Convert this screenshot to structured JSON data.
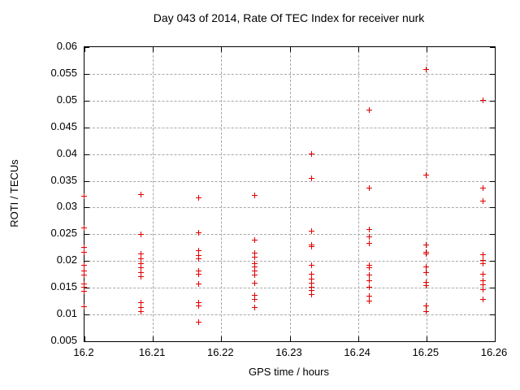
{
  "chart_data": {
    "type": "scatter",
    "title": "Day 043 of 2014, Rate Of TEC Index for receiver nurk",
    "xlabel": "GPS time / hours",
    "ylabel": "ROTI / TECUs",
    "xlim": [
      16.2,
      16.26
    ],
    "ylim": [
      0.005,
      0.06
    ],
    "grid": true,
    "legend": "none",
    "marker": "plus",
    "colors": {
      "marker": "#e00000",
      "grid": "#a8a8a8",
      "axis": "#000000",
      "background": "#ffffff"
    },
    "x_ticks": [
      {
        "value": 16.2,
        "label": "16.2"
      },
      {
        "value": 16.21,
        "label": "16.21"
      },
      {
        "value": 16.22,
        "label": "16.22"
      },
      {
        "value": 16.23,
        "label": "16.23"
      },
      {
        "value": 16.24,
        "label": "16.24"
      },
      {
        "value": 16.25,
        "label": "16.25"
      },
      {
        "value": 16.26,
        "label": "16.26"
      }
    ],
    "y_ticks": [
      {
        "value": 0.005,
        "label": "0.005"
      },
      {
        "value": 0.01,
        "label": "0.01"
      },
      {
        "value": 0.015,
        "label": "0.015"
      },
      {
        "value": 0.02,
        "label": "0.02"
      },
      {
        "value": 0.025,
        "label": "0.025"
      },
      {
        "value": 0.03,
        "label": "0.03"
      },
      {
        "value": 0.035,
        "label": "0.035"
      },
      {
        "value": 0.04,
        "label": "0.04"
      },
      {
        "value": 0.045,
        "label": "0.045"
      },
      {
        "value": 0.05,
        "label": "0.05"
      },
      {
        "value": 0.055,
        "label": "0.055"
      },
      {
        "value": 0.06,
        "label": "0.06"
      }
    ],
    "series": [
      {
        "name": "ROTI",
        "points": [
          [
            16.2,
            0.032
          ],
          [
            16.2,
            0.0261
          ],
          [
            16.2,
            0.0224
          ],
          [
            16.2,
            0.0215
          ],
          [
            16.2,
            0.0191
          ],
          [
            16.2,
            0.0181
          ],
          [
            16.2,
            0.0173
          ],
          [
            16.2,
            0.0156
          ],
          [
            16.2,
            0.015
          ],
          [
            16.2,
            0.0142
          ],
          [
            16.2,
            0.0114
          ],
          [
            16.2083,
            0.0323
          ],
          [
            16.2083,
            0.0249
          ],
          [
            16.2083,
            0.0212
          ],
          [
            16.2083,
            0.0203
          ],
          [
            16.2083,
            0.0195
          ],
          [
            16.2083,
            0.0186
          ],
          [
            16.2083,
            0.0177
          ],
          [
            16.2083,
            0.017
          ],
          [
            16.2083,
            0.0121
          ],
          [
            16.2083,
            0.0113
          ],
          [
            16.2083,
            0.0105
          ],
          [
            16.2167,
            0.0318
          ],
          [
            16.2167,
            0.0252
          ],
          [
            16.2167,
            0.0218
          ],
          [
            16.2167,
            0.021
          ],
          [
            16.2167,
            0.0204
          ],
          [
            16.2167,
            0.0181
          ],
          [
            16.2167,
            0.0174
          ],
          [
            16.2167,
            0.0156
          ],
          [
            16.2167,
            0.0122
          ],
          [
            16.2167,
            0.0116
          ],
          [
            16.2167,
            0.0085
          ],
          [
            16.225,
            0.0322
          ],
          [
            16.225,
            0.0238
          ],
          [
            16.225,
            0.0214
          ],
          [
            16.225,
            0.0206
          ],
          [
            16.225,
            0.0195
          ],
          [
            16.225,
            0.0188
          ],
          [
            16.225,
            0.018
          ],
          [
            16.225,
            0.0173
          ],
          [
            16.225,
            0.0158
          ],
          [
            16.225,
            0.0135
          ],
          [
            16.225,
            0.0128
          ],
          [
            16.225,
            0.0112
          ],
          [
            16.2333,
            0.0399
          ],
          [
            16.2333,
            0.0354
          ],
          [
            16.2333,
            0.0255
          ],
          [
            16.2333,
            0.023
          ],
          [
            16.2333,
            0.0226
          ],
          [
            16.2333,
            0.0191
          ],
          [
            16.2333,
            0.0174
          ],
          [
            16.2333,
            0.0165
          ],
          [
            16.2333,
            0.0158
          ],
          [
            16.2333,
            0.0151
          ],
          [
            16.2333,
            0.0144
          ],
          [
            16.2333,
            0.0136
          ],
          [
            16.2417,
            0.0481
          ],
          [
            16.2417,
            0.0335
          ],
          [
            16.2417,
            0.0258
          ],
          [
            16.2417,
            0.0245
          ],
          [
            16.2417,
            0.0233
          ],
          [
            16.2417,
            0.0192
          ],
          [
            16.2417,
            0.0186
          ],
          [
            16.2417,
            0.0173
          ],
          [
            16.2417,
            0.0163
          ],
          [
            16.2417,
            0.0151
          ],
          [
            16.2417,
            0.0134
          ],
          [
            16.2417,
            0.0125
          ],
          [
            16.25,
            0.0558
          ],
          [
            16.25,
            0.036
          ],
          [
            16.25,
            0.023
          ],
          [
            16.25,
            0.0216
          ],
          [
            16.25,
            0.0213
          ],
          [
            16.25,
            0.0189
          ],
          [
            16.25,
            0.0177
          ],
          [
            16.25,
            0.0159
          ],
          [
            16.25,
            0.0153
          ],
          [
            16.25,
            0.0116
          ],
          [
            16.25,
            0.0104
          ],
          [
            16.2583,
            0.0499
          ],
          [
            16.2583,
            0.0335
          ],
          [
            16.2583,
            0.0311
          ],
          [
            16.2583,
            0.0211
          ],
          [
            16.2583,
            0.0201
          ],
          [
            16.2583,
            0.0195
          ],
          [
            16.2583,
            0.0174
          ],
          [
            16.2583,
            0.0162
          ],
          [
            16.2583,
            0.0155
          ],
          [
            16.2583,
            0.0146
          ],
          [
            16.2583,
            0.0128
          ]
        ]
      }
    ]
  }
}
